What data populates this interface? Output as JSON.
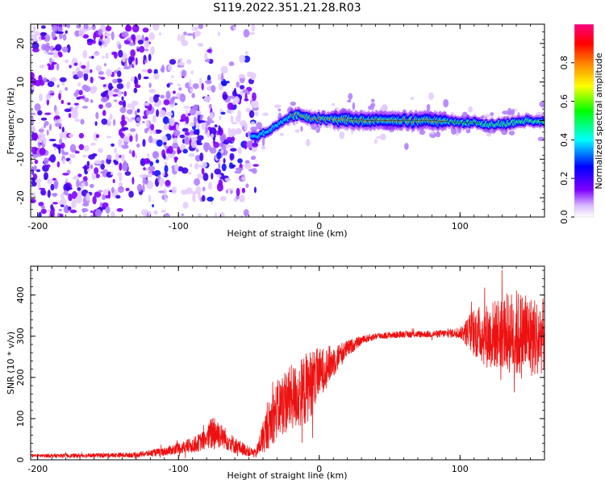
{
  "figure": {
    "title": "S119.2022.351.21.28.R03"
  },
  "chart_data": [
    {
      "type": "heatmap",
      "xlabel": "Height of straight line (km)",
      "ylabel": "Frequency (Hz)",
      "xlim": [
        -205,
        160
      ],
      "ylim": [
        -25,
        25
      ],
      "x_ticks": [
        -200,
        -100,
        0,
        100
      ],
      "x_tick_labels": [
        "-200",
        "-100",
        "0",
        "100"
      ],
      "y_ticks": [
        -20,
        -10,
        0,
        10,
        20
      ],
      "y_tick_labels": [
        "-20",
        "-10",
        "0",
        "10",
        "20"
      ],
      "colorbar": {
        "label": "Normalized spectral amplitude",
        "range": [
          0,
          1
        ],
        "ticks": [
          0,
          0.2,
          0.4,
          0.6,
          0.8
        ],
        "tick_labels": [
          "0.0",
          "0.2",
          "0.4",
          "0.6",
          "0.8"
        ],
        "colormap": "rainbow",
        "colors": [
          "#ffffff",
          "#8000ff",
          "#0000ff",
          "#00ffff",
          "#00ff00",
          "#ffff00",
          "#ff8000",
          "#ff0000",
          "#ff0080"
        ]
      },
      "peak_frequency_track": {
        "x": [
          -45,
          -40,
          -35,
          -30,
          -25,
          -20,
          -15,
          -10,
          -5,
          0,
          10,
          20,
          40,
          60,
          80,
          100,
          110,
          120,
          130,
          140,
          150,
          160
        ],
        "y": [
          -4,
          -3.5,
          -2.5,
          -1,
          0,
          1,
          1.5,
          1,
          0.5,
          0.5,
          0.3,
          0.2,
          0,
          0,
          0,
          -0.5,
          -0.5,
          -1,
          -1,
          -0.5,
          0,
          -0.5
        ]
      },
      "grid": false
    },
    {
      "type": "line",
      "xlabel": "Height of straight line (km)",
      "ylabel": "SNR (10 * v/v)",
      "xlim": [
        -205,
        160
      ],
      "ylim": [
        0,
        470
      ],
      "x_ticks": [
        -200,
        -100,
        0,
        100
      ],
      "x_tick_labels": [
        "-200",
        "-100",
        "0",
        "100"
      ],
      "y_ticks": [
        0,
        100,
        200,
        300,
        400
      ],
      "y_tick_labels": [
        "0",
        "100",
        "200",
        "300",
        "400"
      ],
      "series": [
        {
          "color": "#ee1111",
          "envelope_x": [
            -205,
            -170,
            -130,
            -110,
            -90,
            -80,
            -75,
            -70,
            -60,
            -50,
            -45,
            -40,
            -35,
            -30,
            -25,
            -20,
            -15,
            -10,
            -5,
            0,
            10,
            20,
            30,
            40,
            60,
            80,
            100,
            110,
            120,
            130,
            140,
            150,
            160
          ],
          "envelope_mid": [
            10,
            10,
            12,
            20,
            35,
            50,
            70,
            60,
            35,
            20,
            15,
            55,
            90,
            120,
            140,
            150,
            155,
            170,
            190,
            210,
            240,
            270,
            290,
            300,
            305,
            305,
            308,
            310,
            300,
            310,
            305,
            300,
            300
          ],
          "envelope_spread": [
            4,
            5,
            6,
            10,
            18,
            25,
            50,
            30,
            20,
            12,
            10,
            40,
            60,
            70,
            80,
            80,
            80,
            90,
            80,
            60,
            40,
            20,
            10,
            8,
            8,
            8,
            12,
            60,
            80,
            90,
            110,
            100,
            90
          ]
        }
      ],
      "grid": false
    }
  ]
}
